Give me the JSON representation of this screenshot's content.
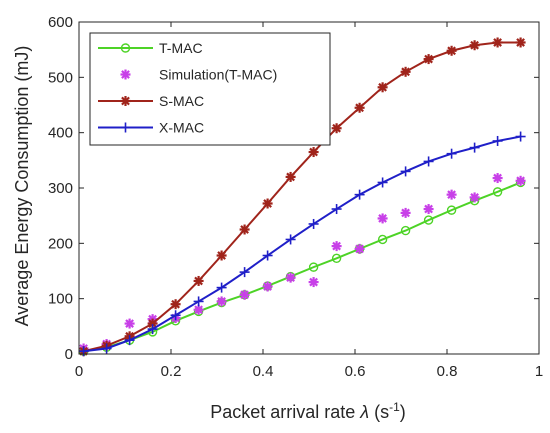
{
  "chart_data": {
    "type": "line",
    "xlabel": "Packet arrival rate λ (s⁻¹)",
    "xlabel_parts": {
      "main": "Packet arrival rate ",
      "lambda": "λ",
      "unit_open": " (s",
      "unit_sup": "-1",
      "unit_close": ")"
    },
    "ylabel": "Average Energy Consumption (mJ)",
    "xlim": [
      0,
      1
    ],
    "ylim": [
      0,
      600
    ],
    "xticks": [
      0,
      0.2,
      0.4,
      0.6,
      0.8,
      1
    ],
    "xtick_labels": [
      "0",
      "0.2",
      "0.4",
      "0.6",
      "0.8",
      "1"
    ],
    "yticks": [
      0,
      100,
      200,
      300,
      400,
      500,
      600
    ],
    "ytick_labels": [
      "0",
      "100",
      "200",
      "300",
      "400",
      "500",
      "600"
    ],
    "grid": false,
    "legend_position": "top-left",
    "x": [
      0.01,
      0.06,
      0.11,
      0.16,
      0.21,
      0.26,
      0.31,
      0.36,
      0.41,
      0.46,
      0.51,
      0.56,
      0.61,
      0.66,
      0.71,
      0.76,
      0.81,
      0.86,
      0.91,
      0.96
    ],
    "series": [
      {
        "name": "T-MAC",
        "color": "#4dd326",
        "marker": "circle",
        "line": true,
        "values": [
          5,
          12,
          25,
          40,
          60,
          77,
          93,
          107,
          123,
          140,
          157,
          173,
          190,
          207,
          223,
          242,
          260,
          277,
          293,
          310
        ]
      },
      {
        "name": "Simulation(T-MAC)",
        "color": "#c840e8",
        "marker": "asterisk",
        "line": false,
        "values": [
          10,
          18,
          55,
          63,
          65,
          80,
          95,
          107,
          122,
          138,
          130,
          195,
          190,
          245,
          255,
          262,
          288,
          283,
          318,
          313
        ]
      },
      {
        "name": "S-MAC",
        "color": "#a0241b",
        "marker": "asterisk",
        "line": true,
        "values": [
          5,
          15,
          32,
          55,
          90,
          132,
          178,
          225,
          272,
          320,
          365,
          408,
          445,
          482,
          510,
          533,
          548,
          558,
          563,
          563
        ]
      },
      {
        "name": "X-MAC",
        "color": "#1f1fc8",
        "marker": "plus",
        "line": true,
        "values": [
          5,
          10,
          25,
          45,
          70,
          95,
          120,
          148,
          178,
          207,
          235,
          262,
          288,
          310,
          330,
          348,
          362,
          373,
          385,
          393
        ]
      }
    ]
  }
}
